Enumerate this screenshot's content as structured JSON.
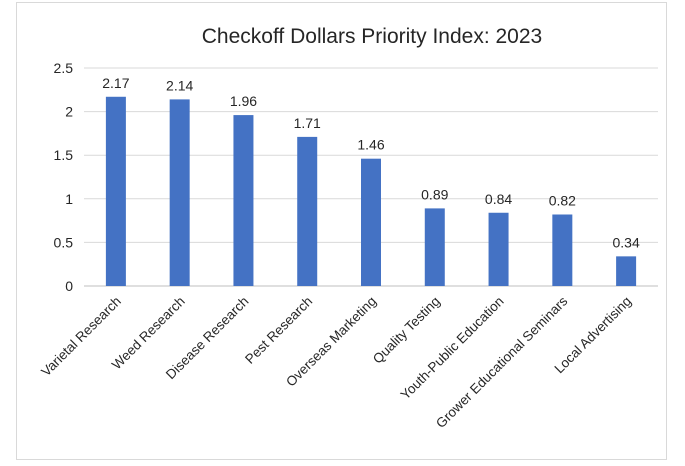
{
  "chart_data": {
    "type": "bar",
    "title": "Checkoff Dollars Priority Index:   2023",
    "xlabel": "",
    "ylabel": "",
    "ylim": [
      0,
      2.5
    ],
    "yticks": [
      "0",
      "0.5",
      "1",
      "1.5",
      "2",
      "2.5"
    ],
    "grid": true,
    "legend": "none",
    "categories": [
      "Varietal Research",
      "Weed Research",
      "Disease Research",
      "Pest Research",
      "Overseas Marketing",
      "Quality Testing",
      "Youth-Public Education",
      "Grower Educational Seminars",
      "Local Advertising"
    ],
    "values": [
      2.17,
      2.14,
      1.96,
      1.71,
      1.46,
      0.89,
      0.84,
      0.82,
      0.34
    ],
    "data_labels": [
      "2.17",
      "2.14",
      "1.96",
      "1.71",
      "1.46",
      "0.89",
      "0.84",
      "0.82",
      "0.34"
    ],
    "bar_color": "#4472c4"
  }
}
